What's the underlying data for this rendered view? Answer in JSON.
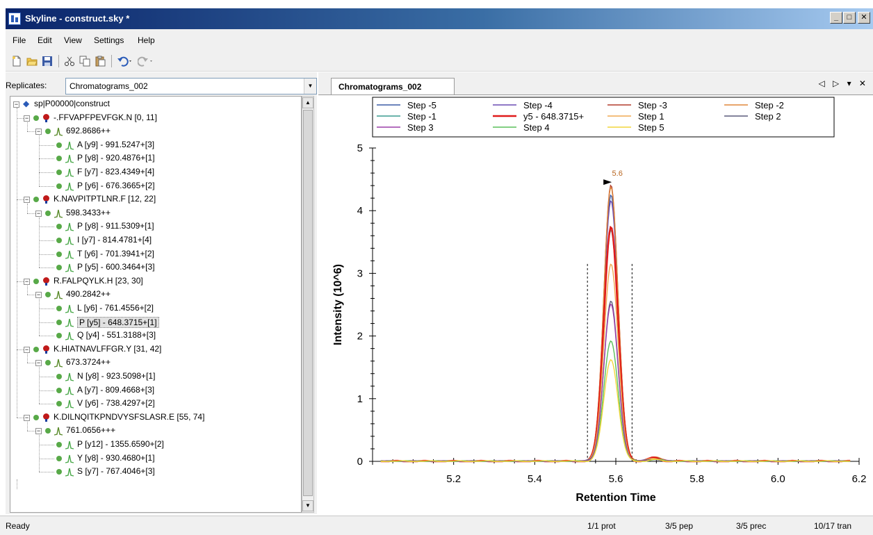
{
  "window": {
    "title": "Skyline - construct.sky *",
    "buttons": [
      "_",
      "□",
      "✕"
    ]
  },
  "menu": [
    "File",
    "Edit",
    "View",
    "Settings",
    "Help"
  ],
  "toolbar_icons": [
    "new-file-icon",
    "open-folder-icon",
    "save-icon",
    "cut-icon",
    "copy-icon",
    "paste-icon",
    "undo-icon",
    "redo-icon"
  ],
  "replicates": {
    "label": "Replicates:",
    "value": "Chromatograms_002"
  },
  "tree": {
    "root": "sp|P00000|construct",
    "peptides": [
      {
        "label": "-.FFVAPFPEVFGK.N [0, 11]",
        "precursor": "692.8686++",
        "transitions": [
          "A [y9] - 991.5247+[3]",
          "P [y8] - 920.4876+[1]",
          "F [y7] - 823.4349+[4]",
          "P [y6] - 676.3665+[2]"
        ]
      },
      {
        "label": "K.NAVPITPTLNR.F [12, 22]",
        "precursor": "598.3433++",
        "transitions": [
          "P [y8] - 911.5309+[1]",
          "I [y7] - 814.4781+[4]",
          "T [y6] - 701.3941+[2]",
          "P [y5] - 600.3464+[3]"
        ]
      },
      {
        "label": "R.FALPQYLK.H [23, 30]",
        "precursor": "490.2842++",
        "transitions": [
          "L [y6] - 761.4556+[2]",
          "P [y5] - 648.3715+[1]",
          "Q [y4] - 551.3188+[3]"
        ]
      },
      {
        "label": "K.HIATNAVLFFGR.Y [31, 42]",
        "precursor": "673.3724++",
        "transitions": [
          "N [y8] - 923.5098+[1]",
          "A [y7] - 809.4668+[3]",
          "V [y6] - 738.4297+[2]"
        ]
      },
      {
        "label": "K.DILNQITKPNDVYSFSLASR.E [55, 74]",
        "precursor": "761.0656+++",
        "transitions": [
          "P [y12] - 1355.6590+[2]",
          "Y [y8] - 930.4680+[1]",
          "S [y7] - 767.4046+[3]"
        ]
      }
    ]
  },
  "tab": {
    "label": "Chromatograms_002",
    "nav": "◁ ▷ ▾ ✕"
  },
  "chart_data": {
    "type": "line",
    "xlabel": "Retention Time",
    "ylabel": "Intensity (10^6)",
    "xlim": [
      5.0,
      6.2
    ],
    "ylim": [
      0,
      5
    ],
    "xticks": [
      "5.2",
      "5.4",
      "5.6",
      "5.8",
      "6.0",
      "6.2"
    ],
    "yticks": [
      "0",
      "1",
      "2",
      "3",
      "4",
      "5"
    ],
    "peak_label": "5.6",
    "integration_bounds": [
      5.53,
      5.64
    ],
    "legend_position": "top",
    "series": [
      {
        "name": "Step -5",
        "color": "#3b5ba5",
        "peak": 4.25
      },
      {
        "name": "Step -4",
        "color": "#6a4bb3",
        "peak": 4.15
      },
      {
        "name": "Step -3",
        "color": "#b23b2b",
        "peak": 4.4
      },
      {
        "name": "Step -2",
        "color": "#e0873a",
        "peak": 4.38
      },
      {
        "name": "Step -1",
        "color": "#3a9c8f",
        "peak": 3.7
      },
      {
        "name": "y5 - 648.3715+",
        "color": "#e01a1a",
        "peak": 3.75
      },
      {
        "name": "Step 1",
        "color": "#f0a850",
        "peak": 3.15
      },
      {
        "name": "Step 2",
        "color": "#5a5a7a",
        "peak": 2.55
      },
      {
        "name": "Step 3",
        "color": "#9c3fa8",
        "peak": 2.5
      },
      {
        "name": "Step 4",
        "color": "#5abf5a",
        "peak": 1.92
      },
      {
        "name": "Step 5",
        "color": "#f2d63a",
        "peak": 1.63
      }
    ]
  },
  "status": {
    "ready": "Ready",
    "prot": "1/1 prot",
    "pep": "3/5 pep",
    "prec": "3/5 prec",
    "tran": "10/17 tran"
  }
}
